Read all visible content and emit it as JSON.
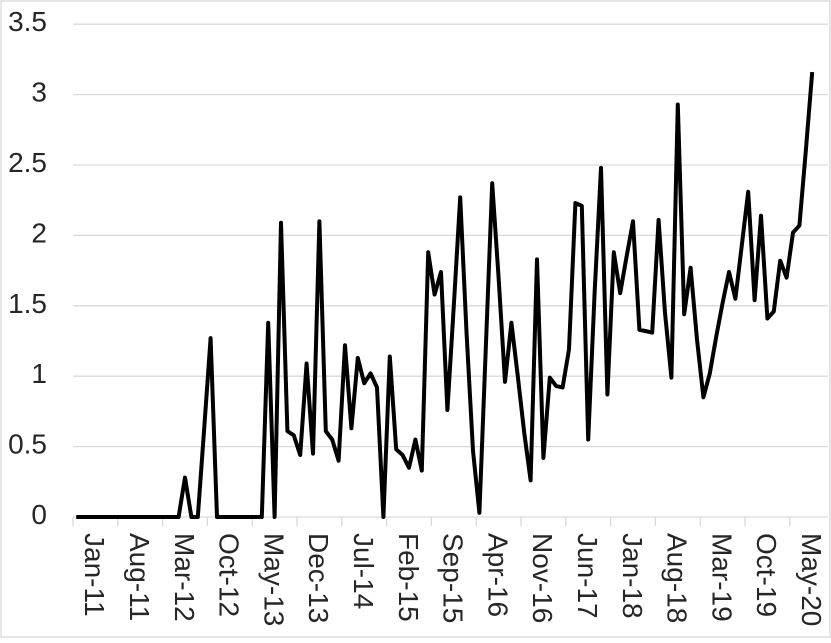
{
  "chart": {
    "background_color": "#ffffff",
    "border_color": "#d9d9d9",
    "grid_color": "#d9d9d9",
    "tick_color": "#d9d9d9",
    "axis_line_color": "#d9d9d9",
    "line_color": "#000000",
    "label_color": "#262626"
  },
  "chart_data": {
    "type": "line",
    "title": "",
    "xlabel": "",
    "ylabel": "",
    "ylim": [
      0,
      3.5
    ],
    "ytick_interval": 0.5,
    "ytick_labels": [
      "0",
      "0.5",
      "1",
      "1.5",
      "2",
      "2.5",
      "3",
      "3.5"
    ],
    "xtick_label_interval": 7,
    "xtick_labels": [
      "Jan-11",
      "Aug-11",
      "Mar-12",
      "Oct-12",
      "May-13",
      "Dec-13",
      "Jul-14",
      "Feb-15",
      "Sep-15",
      "Apr-16",
      "Nov-16",
      "Jun-17",
      "Jan-18",
      "Aug-18",
      "Mar-19",
      "Oct-19",
      "May-20"
    ],
    "grid": "horizontal",
    "legend": "none",
    "categories": [
      "Jan-11",
      "Feb-11",
      "Mar-11",
      "Apr-11",
      "May-11",
      "Jun-11",
      "Jul-11",
      "Aug-11",
      "Sep-11",
      "Oct-11",
      "Nov-11",
      "Dec-11",
      "Jan-12",
      "Feb-12",
      "Mar-12",
      "Apr-12",
      "May-12",
      "Jun-12",
      "Jul-12",
      "Aug-12",
      "Sep-12",
      "Oct-12",
      "Nov-12",
      "Dec-12",
      "Jan-13",
      "Feb-13",
      "Mar-13",
      "Apr-13",
      "May-13",
      "Jun-13",
      "Jul-13",
      "Aug-13",
      "Sep-13",
      "Oct-13",
      "Nov-13",
      "Dec-13",
      "Jan-14",
      "Feb-14",
      "Mar-14",
      "Apr-14",
      "May-14",
      "Jun-14",
      "Jul-14",
      "Aug-14",
      "Sep-14",
      "Oct-14",
      "Nov-14",
      "Dec-14",
      "Jan-15",
      "Feb-15",
      "Mar-15",
      "Apr-15",
      "May-15",
      "Jun-15",
      "Jul-15",
      "Aug-15",
      "Sep-15",
      "Oct-15",
      "Nov-15",
      "Dec-15",
      "Jan-16",
      "Feb-16",
      "Mar-16",
      "Apr-16",
      "May-16",
      "Jun-16",
      "Jul-16",
      "Aug-16",
      "Sep-16",
      "Oct-16",
      "Nov-16",
      "Dec-16",
      "Jan-17",
      "Feb-17",
      "Mar-17",
      "Apr-17",
      "May-17",
      "Jun-17",
      "Jul-17",
      "Aug-17",
      "Sep-17",
      "Oct-17",
      "Nov-17",
      "Dec-17",
      "Jan-18",
      "Feb-18",
      "Mar-18",
      "Apr-18",
      "May-18",
      "Jun-18",
      "Jul-18",
      "Aug-18",
      "Sep-18",
      "Oct-18",
      "Nov-18",
      "Dec-18",
      "Jan-19",
      "Feb-19",
      "Mar-19",
      "Apr-19",
      "May-19",
      "Jun-19",
      "Jul-19",
      "Aug-19",
      "Sep-19",
      "Oct-19",
      "Nov-19",
      "Dec-19",
      "Jan-20",
      "Feb-20",
      "Mar-20",
      "Apr-20",
      "May-20",
      "Jun-20",
      "Jul-20",
      "Aug-20"
    ],
    "series": [
      {
        "name": "value",
        "values": [
          0,
          0,
          0,
          0,
          0,
          0,
          0,
          0,
          0,
          0,
          0,
          0,
          0,
          0,
          0,
          0,
          0,
          0.28,
          0,
          0,
          0.63,
          1.27,
          0,
          0,
          0,
          0,
          0,
          0,
          0,
          0,
          1.38,
          0,
          2.09,
          0.61,
          0.58,
          0.44,
          1.09,
          0.45,
          2.1,
          0.61,
          0.55,
          0.4,
          1.22,
          0.63,
          1.13,
          0.95,
          1.02,
          0.92,
          0,
          1.14,
          0.48,
          0.44,
          0.35,
          0.55,
          0.33,
          1.88,
          1.58,
          1.74,
          0.76,
          1.5,
          2.27,
          1.3,
          0.47,
          0.03,
          1.2,
          2.37,
          1.7,
          0.96,
          1.38,
          1,
          0.6,
          0.26,
          1.83,
          0.42,
          0.99,
          0.93,
          0.92,
          1.19,
          2.23,
          2.21,
          0.55,
          1.59,
          2.48,
          0.87,
          1.88,
          1.59,
          1.85,
          2.1,
          1.33,
          1.32,
          1.31,
          2.11,
          1.45,
          0.99,
          2.93,
          1.44,
          1.77,
          1.26,
          0.85,
          1.02,
          1.28,
          1.52,
          1.74,
          1.55,
          1.93,
          2.31,
          1.54,
          2.14,
          1.41,
          1.46,
          1.82,
          1.7,
          2.02,
          2.07,
          2.6,
          3.16
        ]
      }
    ]
  }
}
